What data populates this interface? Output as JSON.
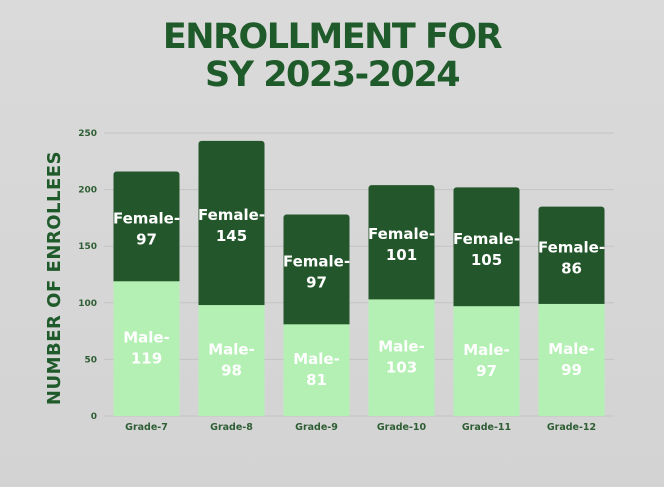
{
  "chart_data": {
    "type": "bar",
    "stacked": true,
    "title": [
      "ENROLLMENT FOR",
      "SY 2023-2024"
    ],
    "ylabel": "NUMBER OF ENROLLEES",
    "xlabel": "",
    "categories": [
      "Grade-7",
      "Grade-8",
      "Grade-9",
      "Grade-10",
      "Grade-11",
      "Grade-12"
    ],
    "ylim": [
      0,
      250
    ],
    "yticks": [
      0,
      50,
      100,
      150,
      200,
      250
    ],
    "grid": true,
    "series": [
      {
        "name": "Male",
        "values": [
          119,
          98,
          81,
          103,
          97,
          99
        ],
        "color": "#b4f0b4",
        "labels": [
          "Male-",
          "Male-",
          "Male-",
          "Male-",
          "Male-",
          "Male-"
        ]
      },
      {
        "name": "Female",
        "values": [
          97,
          145,
          97,
          101,
          105,
          86
        ],
        "color": "#24562b",
        "labels": [
          "Female-",
          "Female-",
          "Female-",
          "Female-",
          "Female-",
          "Female-"
        ]
      }
    ],
    "colors": {
      "title": "#1f5a2a",
      "axis_text": "#2e5e33",
      "grid": "#c4c4c4",
      "background": "#d4d4d4"
    }
  }
}
